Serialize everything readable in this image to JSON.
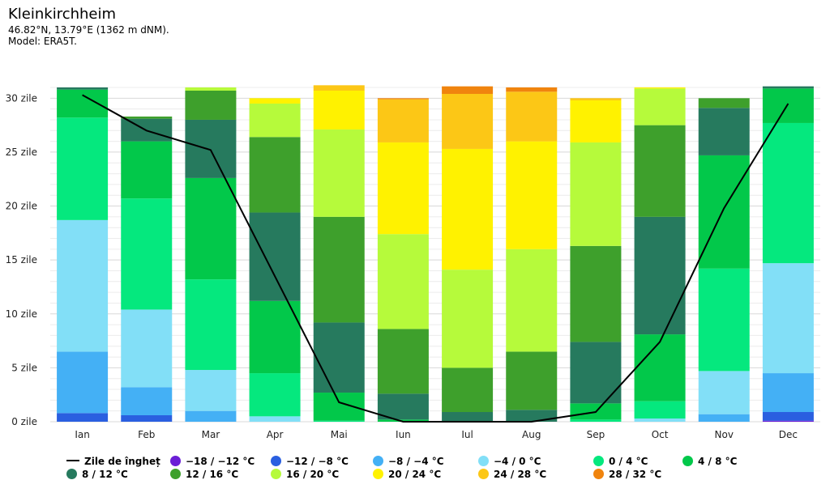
{
  "header": {
    "title": "Kleinkirchheim",
    "coords": "46.82°N, 13.79°E (1362 m dNM).",
    "model": "Model: ERA5T."
  },
  "chart_data": {
    "type": "bar",
    "stacked": true,
    "categories": [
      "Ian",
      "Feb",
      "Mar",
      "Apr",
      "Mai",
      "Iun",
      "Iul",
      "Aug",
      "Sep",
      "Oct",
      "Nov",
      "Dec"
    ],
    "ytick_labels": [
      "0 zile",
      "5 zile",
      "10 zile",
      "15 zile",
      "20 zile",
      "25 zile",
      "30 zile"
    ],
    "ylim": [
      0,
      31
    ],
    "series": [
      {
        "name": "−18 / −12 °C",
        "color": "#6b1fd6",
        "values": [
          0,
          0,
          0,
          0,
          0,
          0,
          0,
          0,
          0,
          0,
          0,
          0.1
        ]
      },
      {
        "name": "−12 / −8 °C",
        "color": "#2a5fe0",
        "values": [
          0.8,
          0.6,
          0,
          0,
          0,
          0,
          0,
          0,
          0,
          0,
          0,
          0.8
        ]
      },
      {
        "name": "−8 / −4 °C",
        "color": "#44b0f5",
        "values": [
          5.7,
          2.6,
          1,
          0,
          0,
          0,
          0,
          0,
          0,
          0,
          0.7,
          3.6
        ]
      },
      {
        "name": "−4 / 0 °C",
        "color": "#82dff7",
        "values": [
          12.2,
          7.2,
          3.8,
          0.5,
          0,
          0,
          0,
          0,
          0,
          0.3,
          4,
          10.2
        ]
      },
      {
        "name": "0 / 4 °C",
        "color": "#05e87e",
        "values": [
          9.5,
          10.3,
          8.4,
          4,
          0.1,
          0,
          0,
          0,
          0.2,
          1.6,
          9.5,
          13
        ]
      },
      {
        "name": "4 / 8 °C",
        "color": "#02c84a",
        "values": [
          2.6,
          5.3,
          9.4,
          6.7,
          2.6,
          0.2,
          0,
          0,
          1.5,
          6.2,
          10.5,
          3.2
        ]
      },
      {
        "name": "8 / 12 °C",
        "color": "#267a5e",
        "values": [
          0.2,
          2.1,
          5.4,
          8.2,
          6.5,
          2.4,
          0.9,
          1.1,
          5.7,
          10.9,
          4.4,
          0.2
        ]
      },
      {
        "name": "12 / 16 °C",
        "color": "#3ea02c",
        "values": [
          0,
          0.2,
          2.7,
          7,
          9.8,
          6,
          4.1,
          5.4,
          8.9,
          8.5,
          0.9,
          0
        ]
      },
      {
        "name": "16 / 20 °C",
        "color": "#b6fa3b",
        "values": [
          0,
          0,
          0.3,
          3.1,
          8.1,
          8.8,
          9.1,
          9.5,
          9.6,
          3.4,
          0,
          0
        ]
      },
      {
        "name": "20 / 24 °C",
        "color": "#fff200",
        "values": [
          0,
          0,
          0,
          0.5,
          3.6,
          8.5,
          11.2,
          10,
          3.9,
          0.1,
          0,
          0
        ]
      },
      {
        "name": "24 / 28 °C",
        "color": "#fcc716",
        "values": [
          0,
          0,
          0,
          0,
          0.5,
          4,
          5.1,
          4.6,
          0.2,
          0,
          0,
          0
        ]
      },
      {
        "name": "28 / 32 °C",
        "color": "#f0840e",
        "values": [
          0,
          0,
          0,
          0,
          0,
          0.1,
          0.7,
          0.4,
          0,
          0,
          0,
          0
        ]
      }
    ],
    "line": {
      "name": "Zile de îngheț",
      "color": "#000000",
      "values": [
        30.3,
        27,
        25.2,
        13.5,
        1.8,
        0,
        0,
        0,
        0.9,
        7.4,
        19.8,
        29.5
      ]
    }
  }
}
